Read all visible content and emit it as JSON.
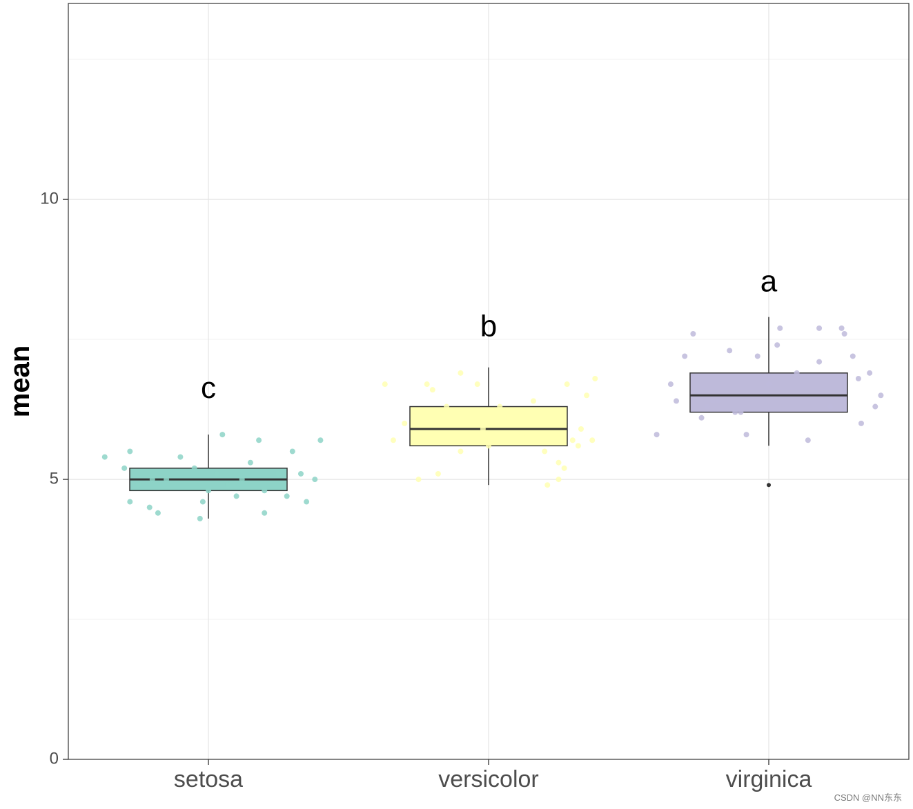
{
  "chart_data": {
    "type": "boxplot",
    "ylabel": "mean",
    "xlabel": "",
    "ylim": [
      0,
      13.5
    ],
    "yticks": [
      0,
      5,
      10
    ],
    "grid": true,
    "categories": [
      "setosa",
      "versicolor",
      "virginica"
    ],
    "colors": [
      "#8DD3C7",
      "#FFFFB3",
      "#BEBADA"
    ],
    "boxes": [
      {
        "name": "setosa",
        "whisker_low": 4.3,
        "q1": 4.8,
        "median": 5.0,
        "q3": 5.2,
        "whisker_high": 5.8,
        "outliers": [],
        "letter": "c",
        "letter_y": 6.6
      },
      {
        "name": "versicolor",
        "whisker_low": 4.9,
        "q1": 5.6,
        "median": 5.9,
        "q3": 6.3,
        "whisker_high": 7.0,
        "outliers": [],
        "letter": "b",
        "letter_y": 7.7
      },
      {
        "name": "virginica",
        "whisker_low": 5.6,
        "q1": 6.2,
        "median": 6.5,
        "q3": 6.9,
        "whisker_high": 7.9,
        "outliers": [
          4.9
        ],
        "letter": "a",
        "letter_y": 8.5
      }
    ],
    "points": [
      [
        [
          -0.37,
          5.4
        ],
        [
          -0.3,
          5.2
        ],
        [
          -0.28,
          5.5
        ],
        [
          -0.28,
          4.6
        ],
        [
          -0.21,
          4.5
        ],
        [
          -0.2,
          5.0
        ],
        [
          -0.15,
          5.0
        ],
        [
          -0.1,
          5.4
        ],
        [
          -0.05,
          5.2
        ],
        [
          -0.03,
          4.3
        ],
        [
          0.0,
          4.8
        ],
        [
          0.05,
          5.8
        ],
        [
          0.1,
          4.7
        ],
        [
          0.12,
          5.0
        ],
        [
          0.15,
          5.3
        ],
        [
          0.2,
          4.8
        ],
        [
          0.25,
          5.1
        ],
        [
          0.18,
          5.7
        ],
        [
          0.3,
          5.5
        ],
        [
          0.33,
          5.1
        ],
        [
          0.4,
          5.7
        ],
        [
          0.38,
          5.0
        ],
        [
          0.28,
          4.7
        ],
        [
          -0.25,
          4.9
        ],
        [
          0.35,
          4.6
        ],
        [
          0.2,
          4.4
        ],
        [
          -0.02,
          4.6
        ],
        [
          0.07,
          4.9
        ],
        [
          -0.18,
          4.4
        ],
        [
          0.03,
          5.1
        ]
      ],
      [
        [
          -0.37,
          6.7
        ],
        [
          -0.34,
          5.7
        ],
        [
          -0.25,
          5.0
        ],
        [
          -0.22,
          6.7
        ],
        [
          -0.2,
          6.6
        ],
        [
          -0.15,
          6.3
        ],
        [
          -0.1,
          6.9
        ],
        [
          -0.04,
          6.7
        ],
        [
          -0.02,
          5.9
        ],
        [
          0.04,
          6.3
        ],
        [
          0.1,
          6.0
        ],
        [
          0.16,
          6.4
        ],
        [
          0.2,
          5.5
        ],
        [
          0.25,
          5.3
        ],
        [
          0.28,
          6.7
        ],
        [
          0.3,
          5.7
        ],
        [
          0.32,
          5.6
        ],
        [
          0.35,
          6.5
        ],
        [
          0.38,
          6.8
        ],
        [
          0.33,
          5.9
        ],
        [
          0.25,
          5.0
        ],
        [
          0.21,
          4.9
        ],
        [
          -0.18,
          5.1
        ],
        [
          -0.1,
          5.5
        ],
        [
          0.0,
          5.6
        ],
        [
          0.12,
          5.8
        ],
        [
          -0.3,
          6.0
        ],
        [
          0.07,
          6.1
        ],
        [
          0.27,
          5.2
        ],
        [
          0.37,
          5.7
        ]
      ],
      [
        [
          -0.4,
          5.8
        ],
        [
          -0.35,
          6.7
        ],
        [
          -0.3,
          7.2
        ],
        [
          -0.27,
          7.6
        ],
        [
          -0.24,
          6.1
        ],
        [
          -0.22,
          6.3
        ],
        [
          -0.18,
          6.4
        ],
        [
          -0.14,
          7.3
        ],
        [
          -0.12,
          6.2
        ],
        [
          -0.08,
          5.8
        ],
        [
          -0.04,
          7.2
        ],
        [
          0.0,
          6.7
        ],
        [
          0.04,
          7.7
        ],
        [
          0.1,
          6.9
        ],
        [
          0.14,
          5.7
        ],
        [
          0.18,
          7.7
        ],
        [
          0.22,
          6.3
        ],
        [
          0.26,
          7.7
        ],
        [
          0.3,
          7.2
        ],
        [
          0.32,
          6.8
        ],
        [
          0.36,
          6.9
        ],
        [
          0.38,
          6.3
        ],
        [
          0.4,
          6.5
        ],
        [
          0.33,
          6.0
        ],
        [
          0.18,
          7.1
        ],
        [
          0.27,
          7.6
        ],
        [
          0.03,
          7.4
        ],
        [
          -0.2,
          6.4
        ],
        [
          -0.33,
          6.4
        ],
        [
          -0.1,
          6.2
        ]
      ]
    ]
  },
  "watermark": "CSDN @NN东东"
}
